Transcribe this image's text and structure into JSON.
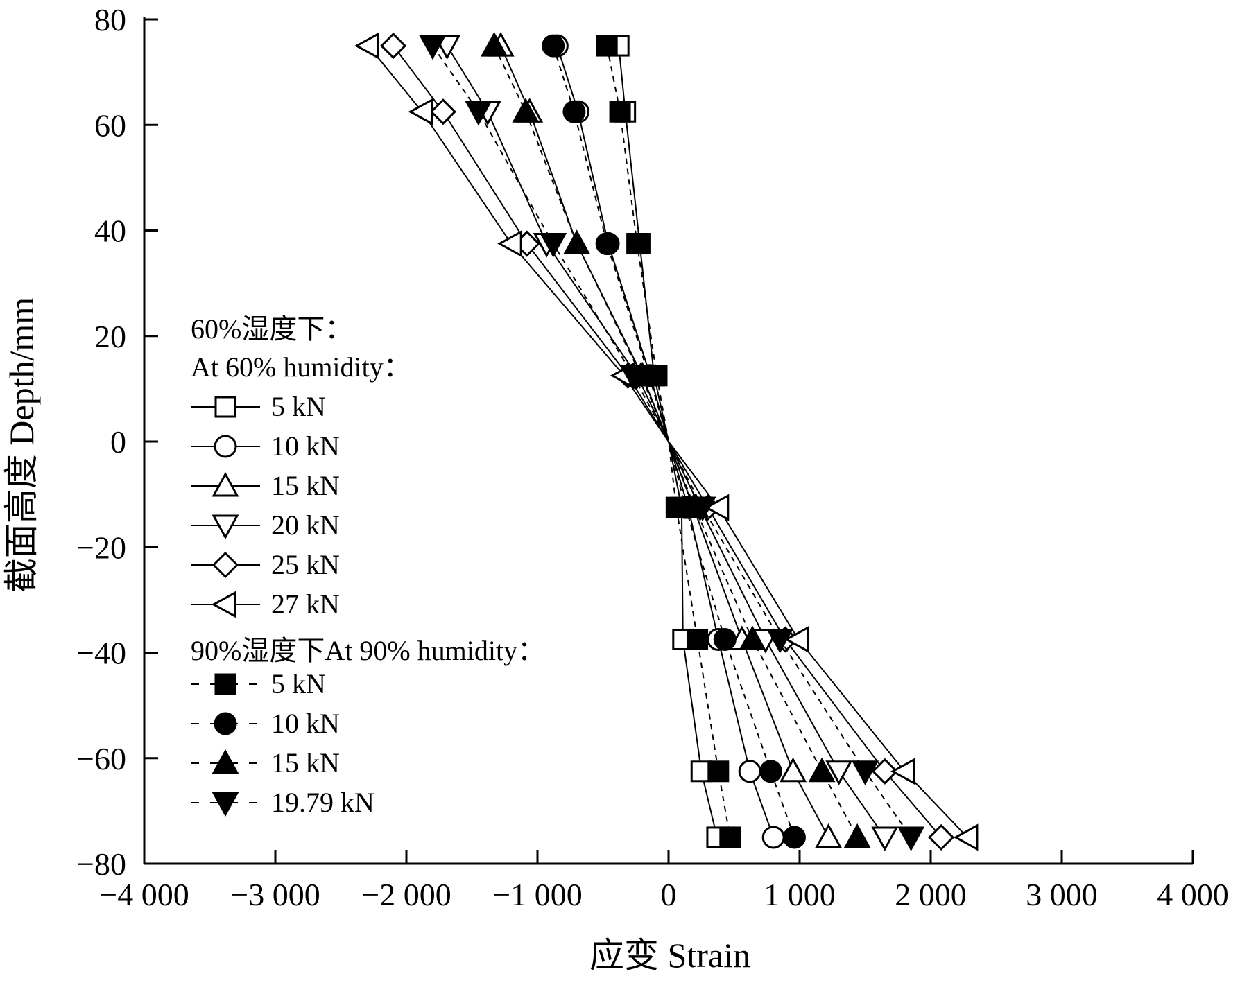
{
  "chart_data": {
    "type": "line",
    "xlabel": "应变  Strain",
    "ylabel": "截面高度  Depth/mm",
    "xlim": [
      -4000,
      4000
    ],
    "ylim": [
      -80,
      80
    ],
    "x_ticks": [
      -4000,
      -3000,
      -2000,
      -1000,
      0,
      1000,
      2000,
      3000,
      4000
    ],
    "x_tick_labels": [
      "−4 000",
      "−3 000",
      "−2 000",
      "−1 000",
      "0",
      "1 000",
      "2 000",
      "3 000",
      "4 000"
    ],
    "y_ticks": [
      80,
      60,
      40,
      20,
      0,
      -20,
      -40,
      -60,
      -80
    ],
    "y_tick_labels": [
      "80",
      "60",
      "40",
      "20",
      "0",
      "−20",
      "−40",
      "−60",
      "−80"
    ],
    "grid": false,
    "legend_position": "left-middle",
    "legend_groups": [
      {
        "title": "60%湿度下：",
        "subtitle": "At 60% humidity："
      },
      {
        "title": "90%湿度下At 90% humidity："
      }
    ],
    "depths": [
      75,
      62.5,
      37.5,
      12.5,
      0,
      -12.5,
      -37.5,
      -62.5,
      -75
    ],
    "series": [
      {
        "name": "5 kN",
        "group": 0,
        "marker": "square",
        "filled": false,
        "dash": false,
        "x": [
          -380,
          -330,
          -220,
          -110,
          0,
          100,
          110,
          250,
          370
        ]
      },
      {
        "name": "10 kN",
        "group": 0,
        "marker": "circle",
        "filled": false,
        "dash": false,
        "x": [
          -850,
          -690,
          -460,
          -140,
          0,
          150,
          380,
          620,
          800
        ]
      },
      {
        "name": "15 kN",
        "group": 0,
        "marker": "triangle-up",
        "filled": false,
        "dash": false,
        "x": [
          -1280,
          -1060,
          -700,
          -200,
          0,
          190,
          560,
          950,
          1220
        ]
      },
      {
        "name": "20 kN",
        "group": 0,
        "marker": "triangle-down",
        "filled": false,
        "dash": false,
        "x": [
          -1690,
          -1380,
          -930,
          -240,
          0,
          240,
          740,
          1300,
          1650
        ]
      },
      {
        "name": "25 kN",
        "group": 0,
        "marker": "diamond",
        "filled": false,
        "dash": false,
        "x": [
          -2100,
          -1720,
          -1080,
          -310,
          0,
          300,
          890,
          1650,
          2080
        ]
      },
      {
        "name": "27 kN",
        "group": 0,
        "marker": "triangle-left",
        "filled": false,
        "dash": false,
        "x": [
          -2290,
          -1880,
          -1200,
          -340,
          0,
          380,
          990,
          1800,
          2280
        ]
      },
      {
        "name": "5 kN",
        "group": 1,
        "marker": "square",
        "filled": true,
        "dash": true,
        "x": [
          -470,
          -370,
          -240,
          -90,
          0,
          60,
          220,
          380,
          470
        ]
      },
      {
        "name": "10 kN",
        "group": 1,
        "marker": "circle",
        "filled": true,
        "dash": true,
        "x": [
          -880,
          -720,
          -470,
          -150,
          0,
          130,
          430,
          780,
          960
        ]
      },
      {
        "name": "15 kN",
        "group": 1,
        "marker": "triangle-up",
        "filled": true,
        "dash": true,
        "x": [
          -1330,
          -1090,
          -700,
          -210,
          0,
          200,
          640,
          1170,
          1440
        ]
      },
      {
        "name": "19.79 kN",
        "group": 1,
        "marker": "triangle-down",
        "filled": true,
        "dash": true,
        "x": [
          -1800,
          -1450,
          -880,
          -270,
          0,
          260,
          850,
          1500,
          1850
        ]
      }
    ]
  }
}
